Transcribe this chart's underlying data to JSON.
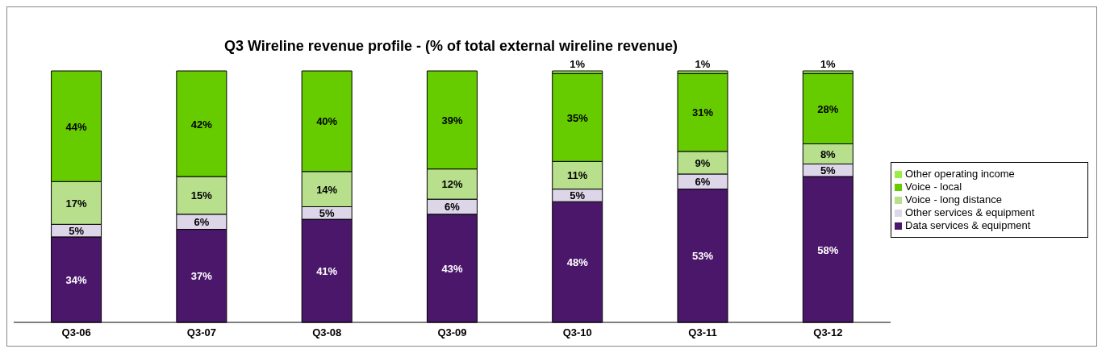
{
  "chart_data": {
    "type": "bar",
    "title": "Q3 Wireline revenue profile  - (% of total external wireline revenue)",
    "categories": [
      "Q3-06",
      "Q3-07",
      "Q3-08",
      "Q3-09",
      "Q3-10",
      "Q3-11",
      "Q3-12"
    ],
    "stacked": true,
    "legend": "right",
    "series": [
      {
        "name": "Data services & equipment",
        "color": "#4b176a",
        "values": [
          34,
          37,
          41,
          43,
          48,
          53,
          58
        ],
        "value_labels": [
          "34%",
          "37%",
          "41%",
          "43%",
          "48%",
          "53%",
          "58%"
        ]
      },
      {
        "name": "Other services & equipment",
        "color": "#ddd5e8",
        "values": [
          5,
          6,
          5,
          6,
          5,
          6,
          5
        ],
        "value_labels": [
          "5%",
          "6%",
          "5%",
          "6%",
          "5%",
          "6%",
          "5%"
        ]
      },
      {
        "name": "Voice - long distance",
        "color": "#b8e08c",
        "values": [
          17,
          15,
          14,
          12,
          11,
          9,
          8
        ],
        "value_labels": [
          "17%",
          "15%",
          "14%",
          "12%",
          "11%",
          "9%",
          "8%"
        ]
      },
      {
        "name": "Voice - local",
        "color": "#66cc00",
        "values": [
          44,
          42,
          40,
          39,
          35,
          31,
          28
        ],
        "value_labels": [
          "44%",
          "42%",
          "40%",
          "39%",
          "35%",
          "31%",
          "28%"
        ]
      },
      {
        "name": "Other operating income",
        "color": "#99ee44",
        "values": [
          null,
          null,
          null,
          null,
          1,
          1,
          1
        ],
        "value_labels": [
          null,
          null,
          null,
          null,
          "1%",
          "1%",
          "1%"
        ]
      }
    ]
  }
}
